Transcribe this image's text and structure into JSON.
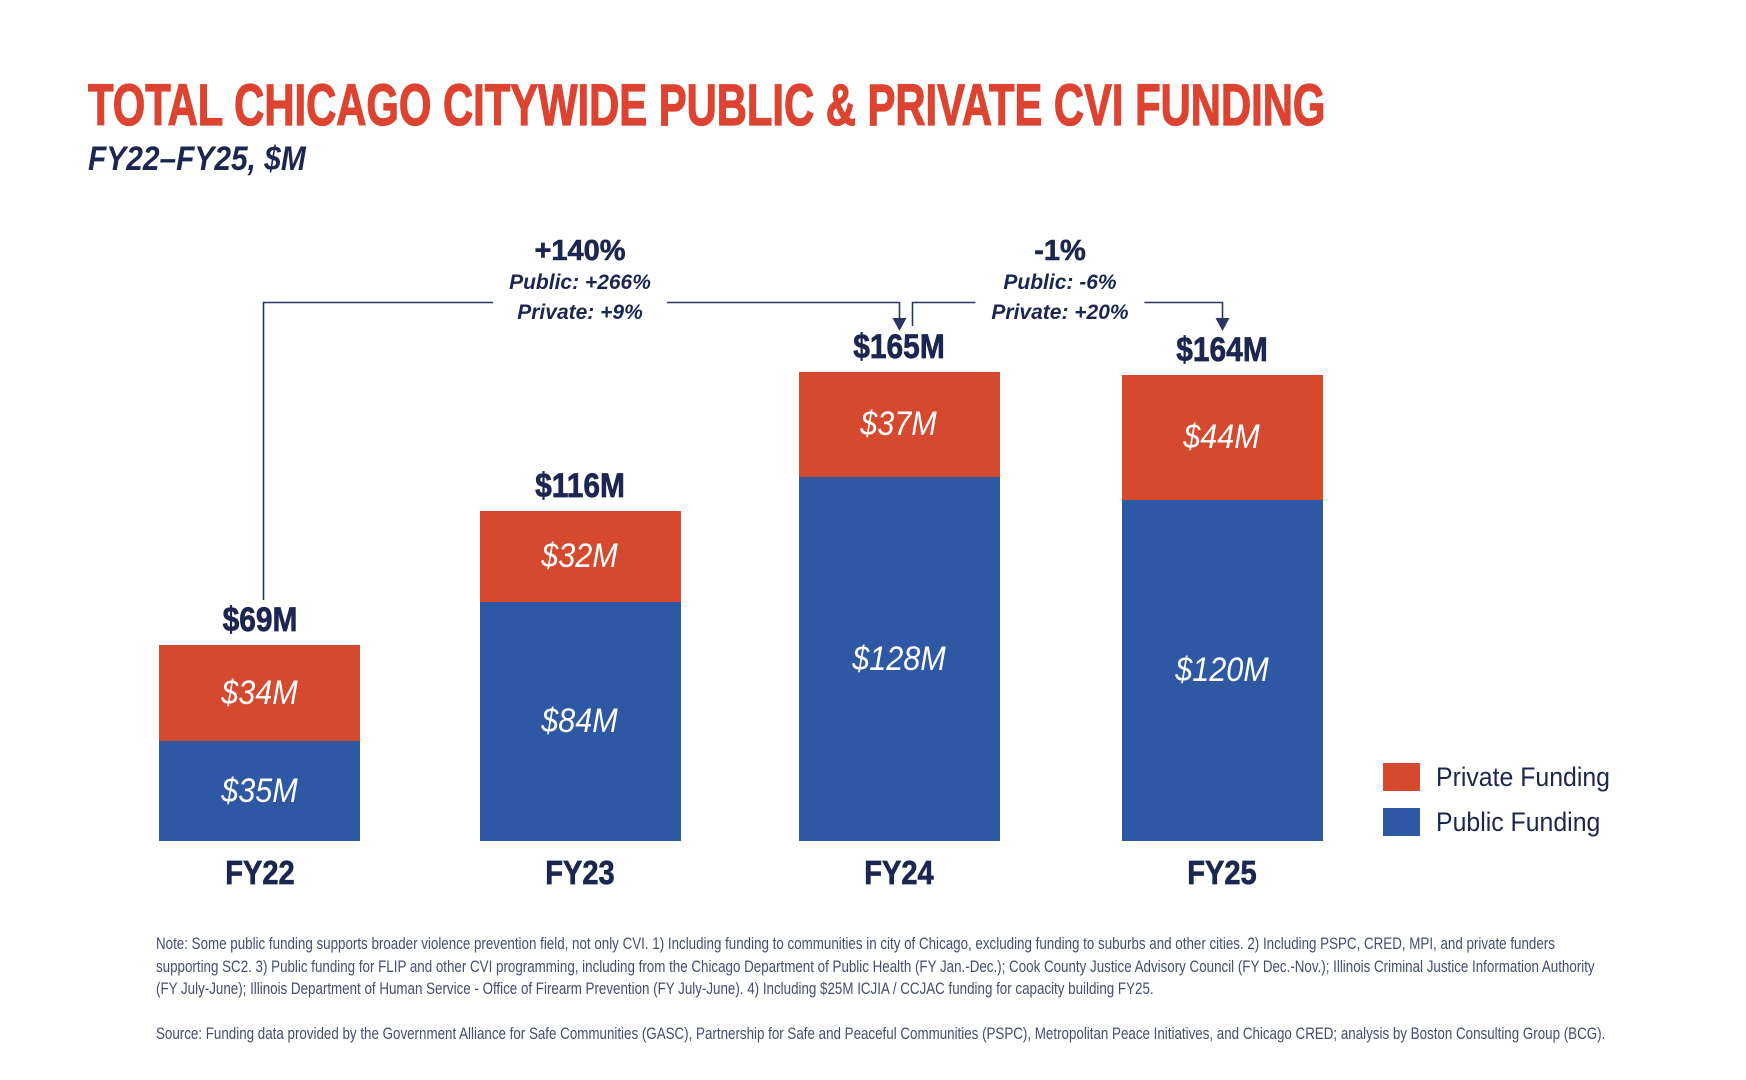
{
  "header": {
    "title": "TOTAL CHICAGO CITYWIDE PUBLIC & PRIVATE CVI FUNDING",
    "subtitle": "FY22–FY25, $M"
  },
  "chart_data": {
    "type": "bar",
    "stacked": true,
    "title": "Total Chicago citywide public & private CVI funding",
    "unit": "$M",
    "categories": [
      "FY22",
      "FY23",
      "FY24",
      "FY25"
    ],
    "series": [
      {
        "name": "Public Funding",
        "color": "#2E57A4",
        "values": [
          35,
          84,
          128,
          120
        ],
        "labels": [
          "$35M",
          "$84M",
          "$128M",
          "$120M"
        ]
      },
      {
        "name": "Private Funding",
        "color": "#D5492F",
        "values": [
          34,
          32,
          37,
          44
        ],
        "labels": [
          "$34M",
          "$32M",
          "$37M",
          "$44M"
        ]
      }
    ],
    "totals": {
      "values": [
        69,
        116,
        165,
        164
      ],
      "labels": [
        "$69M",
        "$116M",
        "$165M",
        "$164M"
      ]
    },
    "ylim": [
      0,
      165
    ],
    "grid": false,
    "legend_position": "right",
    "annotations": [
      {
        "headline": "+140%",
        "lines": [
          "Public: +266%",
          "Private: +9%"
        ],
        "from": "FY22",
        "to": "FY24"
      },
      {
        "headline": "-1%",
        "lines": [
          "Public: -6%",
          "Private: +20%"
        ],
        "from": "FY24",
        "to": "FY25"
      }
    ]
  },
  "legend": {
    "items": [
      {
        "label": "Private Funding",
        "color": "#D5492F"
      },
      {
        "label": "Public Funding",
        "color": "#2E57A4"
      }
    ]
  },
  "footnotes": {
    "note": "Note: Some public funding supports broader violence prevention field, not only CVI. 1) Including funding to communities in city of Chicago, excluding funding to suburbs and other cities. 2) Including PSPC, CRED, MPI, and private funders supporting SC2. 3) Public funding for FLIP and other CVI programming, including from the Chicago Department of Public Health (FY Jan.-Dec.); Cook County Justice Advisory Council (FY Dec.-Nov.); Illinois Criminal Justice Information Authority (FY July-June); Illinois Department of Human Service - Office of Firearm Prevention (FY July-June). 4) Including $25M ICJIA / CCJAC funding for capacity building FY25.",
    "source": "Source: Funding data provided by the Government Alliance for Safe Communities (GASC), Partnership for Safe and Peaceful Communities (PSPC), Metropolitan Peace Initiatives, and Chicago CRED; analysis by Boston Consulting Group (BCG)."
  },
  "colors": {
    "title_red": "#DC4331",
    "bar_red": "#D5492F",
    "bar_blue": "#2E57A4",
    "navy_text": "#1B2750",
    "bracket_line": "#2B3763",
    "footnote_text": "#454E70",
    "background": "#FFFFFF"
  }
}
